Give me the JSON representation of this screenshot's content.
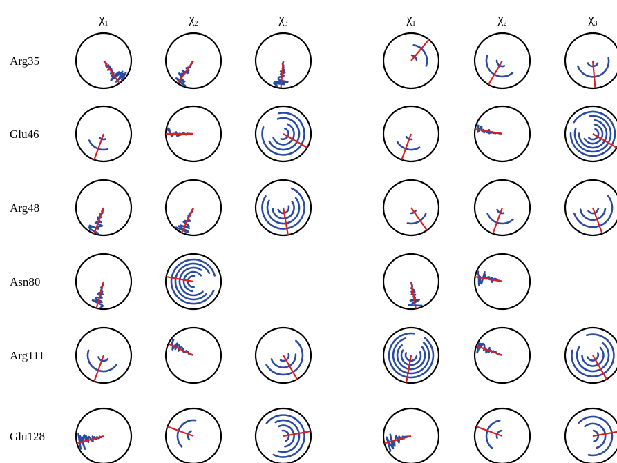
{
  "figure": {
    "column_headers": [
      {
        "symbol": "χ",
        "sub": "1"
      },
      {
        "symbol": "χ",
        "sub": "2"
      },
      {
        "symbol": "χ",
        "sub": "3"
      }
    ],
    "residues": [
      "Arg35",
      "Glu46",
      "Arg48",
      "Asn80",
      "Arg111",
      "Glu128"
    ],
    "colors": {
      "trace": "#2a4ba3",
      "final_angle": "#dd1f1f",
      "circle": "#000000",
      "background": "#ffffff"
    },
    "panels": [
      {
        "dials": [
          [
            {
              "angle": 145,
              "kind": "noise",
              "spread": 60
            },
            {
              "angle": 215,
              "kind": "noise",
              "spread": 35
            },
            {
              "angle": 185,
              "kind": "noise",
              "spread": 40
            }
          ],
          [
            {
              "angle": 200,
              "kind": "spiral",
              "spread": 80
            },
            {
              "angle": 270,
              "kind": "noise",
              "spread": 25
            },
            {
              "angle": 120,
              "kind": "spiral",
              "spread": 300
            }
          ],
          [
            {
              "angle": 200,
              "kind": "noise",
              "spread": 40
            },
            {
              "angle": 205,
              "kind": "noise",
              "spread": 35
            },
            {
              "angle": 170,
              "kind": "spiral",
              "spread": 280
            }
          ],
          [
            {
              "angle": 195,
              "kind": "noise",
              "spread": 35
            },
            {
              "angle": 280,
              "kind": "spiral",
              "spread": 320
            },
            null
          ],
          [
            {
              "angle": 200,
              "kind": "spiral",
              "spread": 160
            },
            {
              "angle": 295,
              "kind": "noise",
              "spread": 30
            },
            {
              "angle": 150,
              "kind": "spiral",
              "spread": 200
            }
          ],
          [
            {
              "angle": 255,
              "kind": "noise",
              "spread": 45
            },
            {
              "angle": 290,
              "kind": "spiral",
              "spread": 140
            },
            {
              "angle": 80,
              "kind": "spiral",
              "spread": 260
            }
          ]
        ]
      },
      {
        "dials": [
          [
            {
              "angle": 40,
              "kind": "spiral",
              "spread": 100
            },
            {
              "angle": 210,
              "kind": "spiral",
              "spread": 150
            },
            {
              "angle": 175,
              "kind": "spiral",
              "spread": 170
            }
          ],
          [
            {
              "angle": 200,
              "kind": "spiral",
              "spread": 90
            },
            {
              "angle": 280,
              "kind": "noise",
              "spread": 25
            },
            {
              "angle": 120,
              "kind": "spiral",
              "spread": 330
            }
          ],
          [
            {
              "angle": 145,
              "kind": "spiral",
              "spread": 80
            },
            {
              "angle": 200,
              "kind": "spiral",
              "spread": 110
            },
            {
              "angle": 160,
              "kind": "spiral",
              "spread": 200
            }
          ],
          [
            {
              "angle": 170,
              "kind": "noise",
              "spread": 35
            },
            {
              "angle": 280,
              "kind": "noise",
              "spread": 45
            },
            null
          ],
          [
            {
              "angle": 190,
              "kind": "spiral",
              "spread": 330
            },
            {
              "angle": 290,
              "kind": "noise",
              "spread": 30
            },
            {
              "angle": 150,
              "kind": "spiral",
              "spread": 300
            }
          ],
          [
            {
              "angle": 255,
              "kind": "noise",
              "spread": 45
            },
            {
              "angle": 290,
              "kind": "spiral",
              "spread": 130
            },
            {
              "angle": 80,
              "kind": "spiral",
              "spread": 240
            }
          ]
        ]
      }
    ]
  }
}
